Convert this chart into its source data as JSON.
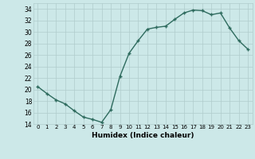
{
  "x": [
    0,
    1,
    2,
    3,
    4,
    5,
    6,
    7,
    8,
    9,
    10,
    11,
    12,
    13,
    14,
    15,
    16,
    17,
    18,
    19,
    20,
    21,
    22,
    23
  ],
  "y": [
    20.5,
    19.3,
    18.2,
    17.5,
    16.3,
    15.2,
    14.8,
    14.3,
    16.5,
    22.3,
    26.3,
    28.5,
    30.5,
    30.8,
    31.0,
    32.2,
    33.3,
    33.8,
    33.7,
    33.0,
    33.3,
    30.7,
    28.5,
    27.0
  ],
  "xlabel": "Humidex (Indice chaleur)",
  "ylim": [
    14,
    35
  ],
  "xlim": [
    -0.5,
    23.5
  ],
  "yticks": [
    14,
    16,
    18,
    20,
    22,
    24,
    26,
    28,
    30,
    32,
    34
  ],
  "xtick_labels": [
    "0",
    "1",
    "2",
    "3",
    "4",
    "5",
    "6",
    "7",
    "8",
    "9",
    "10",
    "11",
    "12",
    "13",
    "14",
    "15",
    "16",
    "17",
    "18",
    "19",
    "20",
    "21",
    "22",
    "23"
  ],
  "line_color": "#2e6b5e",
  "marker": "+",
  "marker_size": 3,
  "bg_color": "#cce8e8",
  "grid_color": "#b0cccc",
  "line_width": 1.0
}
